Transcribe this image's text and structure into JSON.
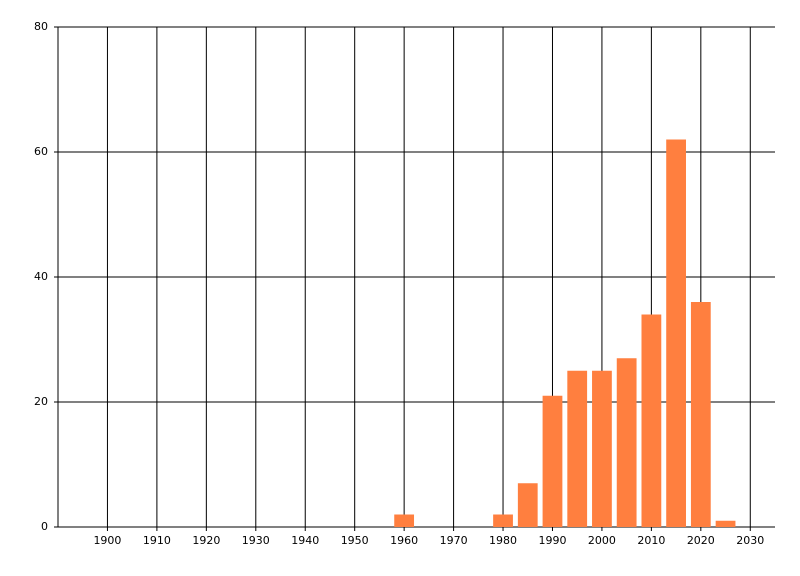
{
  "chart_data": {
    "type": "bar",
    "x": [
      1960,
      1980,
      1985,
      1990,
      1995,
      2000,
      2005,
      2010,
      2015,
      2020,
      2025
    ],
    "values": [
      2,
      2,
      7,
      21,
      25,
      25,
      27,
      34,
      62,
      36,
      1
    ],
    "color": "#ff7f3f",
    "xlim": [
      1890,
      2035
    ],
    "xticks": [
      1900,
      1910,
      1920,
      1930,
      1940,
      1950,
      1960,
      1970,
      1980,
      1990,
      2000,
      2010,
      2020,
      2030
    ],
    "ylim": [
      0,
      80
    ],
    "yticks": [
      0,
      20,
      40,
      60,
      80
    ],
    "grid": true
  }
}
